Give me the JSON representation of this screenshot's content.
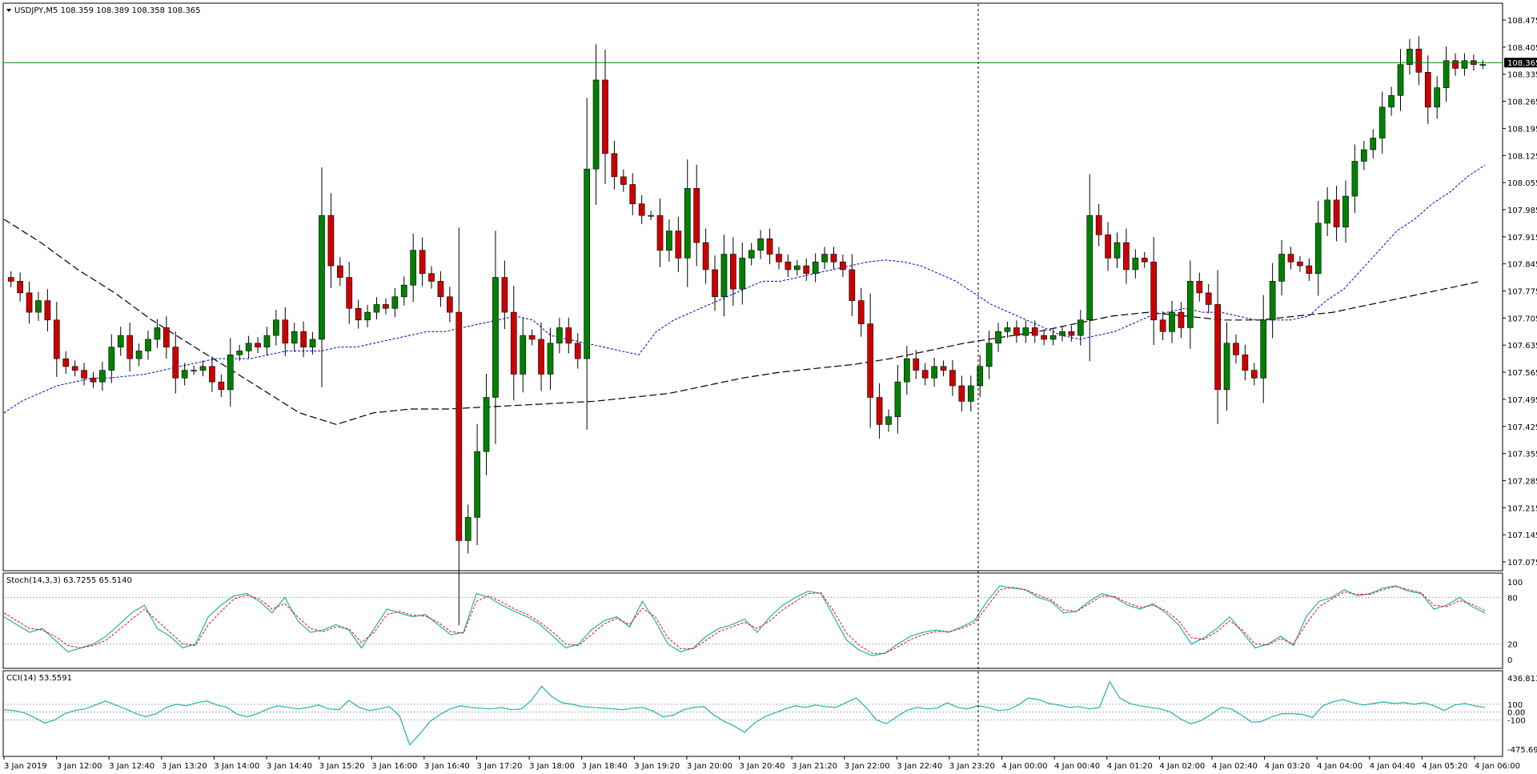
{
  "main_panel": {
    "symbol_info": "USDJPY,M5  108.359 108.389 108.358 108.365",
    "current_price": "108.365",
    "y_ticks": [
      "108.475",
      "108.405",
      "108.335",
      "108.265",
      "108.195",
      "108.125",
      "108.055",
      "107.985",
      "107.915",
      "107.845",
      "107.775",
      "107.705",
      "107.635",
      "107.565",
      "107.495",
      "107.425",
      "107.355",
      "107.285",
      "107.215",
      "107.145",
      "107.075"
    ]
  },
  "stoch_panel": {
    "label": "Stoch(14,3,3) 63.7255 65.5140",
    "y_ticks": [
      "100",
      "80",
      "20",
      "0"
    ]
  },
  "cci_panel": {
    "label": "CCI(14) 53.5591",
    "y_ticks": [
      "436.8138",
      "100",
      "0.00",
      "-100",
      "-475.6929"
    ]
  },
  "x_ticks": [
    "3 Jan 2019",
    "3 Jan 12:00",
    "3 Jan 12:40",
    "3 Jan 13:20",
    "3 Jan 14:00",
    "3 Jan 14:40",
    "3 Jan 15:20",
    "3 Jan 16:00",
    "3 Jan 16:40",
    "3 Jan 17:20",
    "3 Jan 18:00",
    "3 Jan 18:40",
    "3 Jan 19:20",
    "3 Jan 20:00",
    "3 Jan 20:40",
    "3 Jan 21:20",
    "3 Jan 22:00",
    "3 Jan 22:40",
    "3 Jan 23:20",
    "4 Jan 00:00",
    "4 Jan 00:40",
    "4 Jan 01:20",
    "4 Jan 02:00",
    "4 Jan 02:40",
    "4 Jan 03:20",
    "4 Jan 04:00",
    "4 Jan 04:40",
    "4 Jan 05:20",
    "4 Jan 06:00"
  ],
  "colors": {
    "background": "#ffffff",
    "bull_candle": "#008000",
    "bear_candle": "#cc0000",
    "wick": "#000000",
    "price_line": "#008000",
    "ma_fast": "#0000cc",
    "ma_slow": "#000000",
    "stoch_main": "#20b2aa",
    "stoch_signal": "#ff0000",
    "cci_line": "#20b2aa"
  },
  "chart_data": [
    {
      "type": "candlestick",
      "title": "USDJPY,M5",
      "ylim": [
        107.075,
        108.475
      ],
      "closes": [
        107.8,
        107.77,
        107.72,
        107.75,
        107.7,
        107.6,
        107.58,
        107.57,
        107.55,
        107.54,
        107.57,
        107.63,
        107.66,
        107.6,
        107.62,
        107.65,
        107.68,
        107.63,
        107.55,
        107.57,
        107.57,
        107.58,
        107.54,
        107.52,
        107.61,
        107.62,
        107.64,
        107.63,
        107.66,
        107.7,
        107.64,
        107.67,
        107.63,
        107.65,
        107.97,
        107.84,
        107.81,
        107.73,
        107.7,
        107.72,
        107.74,
        107.73,
        107.76,
        107.79,
        107.88,
        107.82,
        107.8,
        107.76,
        107.72,
        107.13,
        107.19,
        107.36,
        107.5,
        107.81,
        107.72,
        107.56,
        107.66,
        107.65,
        107.56,
        107.64,
        107.68,
        107.64,
        107.6,
        108.09,
        108.32,
        108.13,
        108.07,
        108.05,
        108.0,
        107.97,
        107.97,
        107.88,
        107.93,
        107.86,
        108.04,
        107.9,
        107.83,
        107.76,
        107.87,
        107.78,
        107.86,
        107.88,
        107.91,
        107.87,
        107.85,
        107.83,
        107.84,
        107.82,
        107.85,
        107.87,
        107.85,
        107.83,
        107.75,
        107.69,
        107.5,
        107.43,
        107.45,
        107.54,
        107.6,
        107.57,
        107.55,
        107.58,
        107.57,
        107.53,
        107.49,
        107.53,
        107.58,
        107.64,
        107.67,
        107.68,
        107.66,
        107.68,
        107.66,
        107.65,
        107.66,
        107.67,
        107.66,
        107.7,
        107.97,
        107.92,
        107.86,
        107.9,
        107.83,
        107.86,
        107.85,
        107.7,
        107.67,
        107.72,
        107.68,
        107.8,
        107.77,
        107.74,
        107.52,
        107.64,
        107.61,
        107.57,
        107.55,
        107.7,
        107.8,
        107.87,
        107.85,
        107.84,
        107.82,
        107.95,
        108.01,
        107.94,
        108.02,
        108.11,
        108.14,
        108.17,
        108.25,
        108.28,
        108.36,
        108.4,
        108.34,
        108.25,
        108.3,
        108.37,
        108.35,
        108.37,
        108.36,
        108.36
      ],
      "ma_fast": [
        107.46,
        107.49,
        107.51,
        107.53,
        107.54,
        107.55,
        107.55,
        107.555,
        107.56,
        107.57,
        107.58,
        107.59,
        107.6,
        107.6,
        107.6,
        107.61,
        107.62,
        107.62,
        107.62,
        107.63,
        107.63,
        107.64,
        107.65,
        107.66,
        107.67,
        107.67,
        107.68,
        107.69,
        107.7,
        107.71,
        107.7,
        107.66,
        107.65,
        107.64,
        107.63,
        107.62,
        107.61,
        107.67,
        107.7,
        107.72,
        107.74,
        107.76,
        107.78,
        107.8,
        107.8,
        107.81,
        107.82,
        107.83,
        107.84,
        107.85,
        107.855,
        107.85,
        107.84,
        107.82,
        107.8,
        107.77,
        107.74,
        107.72,
        107.7,
        107.68,
        107.66,
        107.65,
        107.66,
        107.67,
        107.69,
        107.71,
        107.72,
        107.73,
        107.72,
        107.72,
        107.71,
        107.7,
        107.7,
        107.7,
        107.71,
        107.75,
        107.78,
        107.83,
        107.88,
        107.93,
        107.96,
        108.0,
        108.03,
        108.07,
        108.1
      ],
      "ma_slow": [
        107.96,
        107.9,
        107.83,
        107.77,
        107.7,
        107.64,
        107.58,
        107.52,
        107.46,
        107.43,
        107.46,
        107.47,
        107.47,
        107.475,
        107.48,
        107.485,
        107.49,
        107.5,
        107.51,
        107.53,
        107.55,
        107.565,
        107.575,
        107.585,
        107.6,
        107.62,
        107.64,
        107.655,
        107.67,
        107.69,
        107.71,
        107.72,
        107.71,
        107.7,
        107.7,
        107.71,
        107.72,
        107.74,
        107.76,
        107.78,
        107.8
      ]
    },
    {
      "type": "line",
      "title": "Stoch(14,3,3)",
      "ylim": [
        0,
        100
      ],
      "levels": [
        80,
        20
      ],
      "series": [
        {
          "name": "main",
          "values": [
            55,
            45,
            35,
            40,
            25,
            10,
            15,
            20,
            30,
            45,
            60,
            70,
            40,
            30,
            15,
            20,
            55,
            70,
            82,
            85,
            75,
            60,
            80,
            50,
            35,
            38,
            45,
            38,
            15,
            40,
            65,
            60,
            55,
            58,
            45,
            32,
            35,
            85,
            80,
            70,
            62,
            55,
            45,
            30,
            15,
            20,
            38,
            50,
            55,
            42,
            75,
            50,
            20,
            10,
            15,
            30,
            40,
            45,
            52,
            35,
            55,
            70,
            80,
            88,
            85,
            55,
            25,
            12,
            5,
            8,
            20,
            30,
            35,
            38,
            35,
            42,
            50,
            75,
            95,
            92,
            90,
            80,
            75,
            60,
            62,
            75,
            85,
            80,
            70,
            65,
            72,
            60,
            45,
            20,
            28,
            40,
            55,
            35,
            15,
            20,
            30,
            18,
            55,
            75,
            80,
            90,
            82,
            85,
            92,
            95,
            88,
            85,
            65,
            70,
            80,
            68,
            60
          ]
        },
        {
          "name": "signal",
          "values": [
            60,
            50,
            40,
            38,
            30,
            18,
            15,
            18,
            25,
            38,
            52,
            65,
            50,
            35,
            20,
            18,
            45,
            62,
            78,
            83,
            78,
            65,
            72,
            55,
            40,
            36,
            42,
            40,
            22,
            35,
            58,
            62,
            57,
            56,
            48,
            36,
            34,
            75,
            82,
            74,
            65,
            58,
            48,
            35,
            20,
            18,
            32,
            46,
            53,
            45,
            66,
            55,
            28,
            14,
            14,
            25,
            36,
            42,
            48,
            40,
            50,
            64,
            75,
            85,
            86,
            62,
            34,
            18,
            8,
            8,
            16,
            26,
            32,
            36,
            36,
            40,
            47,
            68,
            90,
            93,
            90,
            83,
            77,
            64,
            62,
            72,
            82,
            81,
            73,
            67,
            70,
            63,
            50,
            28,
            26,
            36,
            50,
            38,
            20,
            19,
            27,
            20,
            46,
            68,
            78,
            87,
            84,
            84,
            90,
            94,
            90,
            86,
            70,
            68,
            76,
            71,
            63
          ]
        }
      ]
    },
    {
      "type": "line",
      "title": "CCI(14)",
      "ylim": [
        -475.6929,
        436.8138
      ],
      "levels": [
        100,
        0,
        -100
      ],
      "series": [
        {
          "name": "CCI(14)",
          "values": [
            30,
            20,
            -10,
            -70,
            -140,
            -100,
            -20,
            20,
            40,
            90,
            140,
            90,
            40,
            -20,
            -60,
            -20,
            60,
            100,
            80,
            120,
            140,
            90,
            60,
            -30,
            -60,
            -20,
            40,
            80,
            60,
            40,
            60,
            90,
            40,
            30,
            150,
            60,
            20,
            40,
            70,
            -50,
            -420,
            -280,
            -120,
            -30,
            40,
            80,
            60,
            50,
            40,
            60,
            30,
            40,
            150,
            330,
            200,
            120,
            100,
            70,
            60,
            50,
            40,
            30,
            50,
            60,
            10,
            -60,
            -40,
            30,
            60,
            70,
            -40,
            -120,
            -180,
            -260,
            -140,
            -60,
            -10,
            40,
            80,
            60,
            90,
            70,
            60,
            120,
            180,
            60,
            -100,
            -150,
            -60,
            20,
            60,
            40,
            50,
            120,
            60,
            40,
            80,
            60,
            20,
            30,
            90,
            180,
            160,
            110,
            90,
            60,
            70,
            40,
            60,
            390,
            180,
            110,
            80,
            60,
            40,
            0,
            -90,
            -150,
            -110,
            -30,
            60,
            40,
            -40,
            -130,
            -120,
            -60,
            -20,
            -20,
            -30,
            -70,
            80,
            130,
            160,
            120,
            90,
            110,
            130,
            110,
            120,
            100,
            120,
            80,
            20,
            90,
            110,
            80,
            60
          ]
        }
      ]
    }
  ]
}
